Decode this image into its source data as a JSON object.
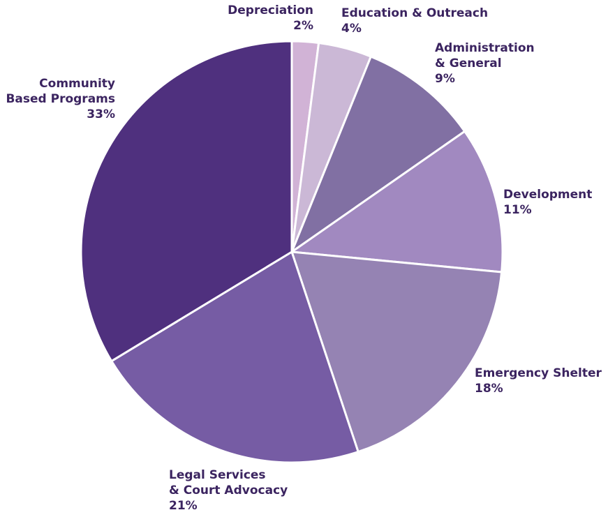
{
  "chart_data": {
    "type": "pie",
    "title": "",
    "start": "12 o'clock",
    "direction": "clockwise",
    "slices": [
      {
        "label_lines": [
          "Depreciation"
        ],
        "pct_label": "2%",
        "value": 2,
        "color": "#d1b3d6"
      },
      {
        "label_lines": [
          "Education & Outreach"
        ],
        "pct_label": "4%",
        "value": 4,
        "color": "#cbb8d6"
      },
      {
        "label_lines": [
          "Administration",
          "& General"
        ],
        "pct_label": "9%",
        "value": 9,
        "color": "#8170a3"
      },
      {
        "label_lines": [
          "Development"
        ],
        "pct_label": "11%",
        "value": 11,
        "color": "#a189c0"
      },
      {
        "label_lines": [
          "Emergency Shelter"
        ],
        "pct_label": "18%",
        "value": 18,
        "color": "#9583b3"
      },
      {
        "label_lines": [
          "Legal Services",
          "& Court Advocacy"
        ],
        "pct_label": "21%",
        "value": 21,
        "color": "#765ca4"
      },
      {
        "label_lines": [
          "Community",
          "Based Programs"
        ],
        "pct_label": "33%",
        "value": 33,
        "color": "#4f307e"
      }
    ],
    "label_color": "#3b2460",
    "separator_color": "#ffffff"
  }
}
